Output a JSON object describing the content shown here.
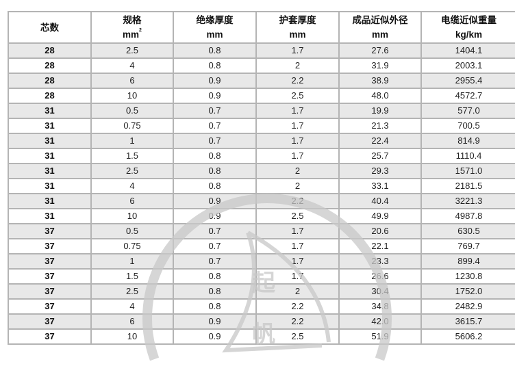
{
  "headers": [
    {
      "title": "芯数",
      "unit": ""
    },
    {
      "title": "规格",
      "unit": "mm",
      "sup": "2"
    },
    {
      "title": "绝缘厚度",
      "unit": "mm"
    },
    {
      "title": "护套厚度",
      "unit": "mm"
    },
    {
      "title": "成品近似外径",
      "unit": "mm"
    },
    {
      "title": "电缆近似重量",
      "unit": "kg/km"
    }
  ],
  "rows": [
    [
      "28",
      "2.5",
      "0.8",
      "1.7",
      "27.6",
      "1404.1"
    ],
    [
      "28",
      "4",
      "0.8",
      "2",
      "31.9",
      "2003.1"
    ],
    [
      "28",
      "6",
      "0.9",
      "2.2",
      "38.9",
      "2955.4"
    ],
    [
      "28",
      "10",
      "0.9",
      "2.5",
      "48.0",
      "4572.7"
    ],
    [
      "31",
      "0.5",
      "0.7",
      "1.7",
      "19.9",
      "577.0"
    ],
    [
      "31",
      "0.75",
      "0.7",
      "1.7",
      "21.3",
      "700.5"
    ],
    [
      "31",
      "1",
      "0.7",
      "1.7",
      "22.4",
      "814.9"
    ],
    [
      "31",
      "1.5",
      "0.8",
      "1.7",
      "25.7",
      "1110.4"
    ],
    [
      "31",
      "2.5",
      "0.8",
      "2",
      "29.3",
      "1571.0"
    ],
    [
      "31",
      "4",
      "0.8",
      "2",
      "33.1",
      "2181.5"
    ],
    [
      "31",
      "6",
      "0.9",
      "2.2",
      "40.4",
      "3221.3"
    ],
    [
      "31",
      "10",
      "0.9",
      "2.5",
      "49.9",
      "4987.8"
    ],
    [
      "37",
      "0.5",
      "0.7",
      "1.7",
      "20.6",
      "630.5"
    ],
    [
      "37",
      "0.75",
      "0.7",
      "1.7",
      "22.1",
      "769.7"
    ],
    [
      "37",
      "1",
      "0.7",
      "1.7",
      "23.3",
      "899.4"
    ],
    [
      "37",
      "1.5",
      "0.8",
      "1.7",
      "26.6",
      "1230.8"
    ],
    [
      "37",
      "2.5",
      "0.8",
      "2",
      "30.4",
      "1752.0"
    ],
    [
      "37",
      "4",
      "0.8",
      "2.2",
      "34.8",
      "2482.9"
    ],
    [
      "37",
      "6",
      "0.9",
      "2.2",
      "42.0",
      "3615.7"
    ],
    [
      "37",
      "10",
      "0.9",
      "2.5",
      "51.9",
      "5606.2"
    ]
  ],
  "watermark": {
    "text": "起帆",
    "color": "#c8c8c8"
  }
}
